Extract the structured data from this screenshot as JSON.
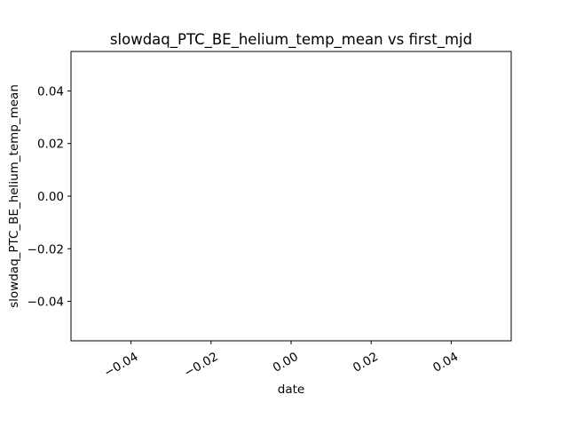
{
  "chart_data": {
    "type": "line",
    "title": "slowdaq_PTC_BE_helium_temp_mean vs first_mjd",
    "xlabel": "date",
    "ylabel": "slowdaq_PTC_BE_helium_temp_mean",
    "x": [],
    "series": [
      {
        "values": []
      }
    ],
    "xlim": [
      -0.055,
      0.055
    ],
    "ylim": [
      -0.055,
      0.055
    ],
    "xticks": [
      -0.04,
      -0.02,
      0.0,
      0.02,
      0.04
    ],
    "xtick_labels": [
      "−0.04",
      "−0.02",
      "0.00",
      "0.02",
      "0.04"
    ],
    "yticks": [
      -0.04,
      -0.02,
      0.0,
      0.02,
      0.04
    ],
    "ytick_labels": [
      "−0.04",
      "−0.02",
      "0.00",
      "0.02",
      "0.04"
    ],
    "grid": false,
    "legend": false
  }
}
